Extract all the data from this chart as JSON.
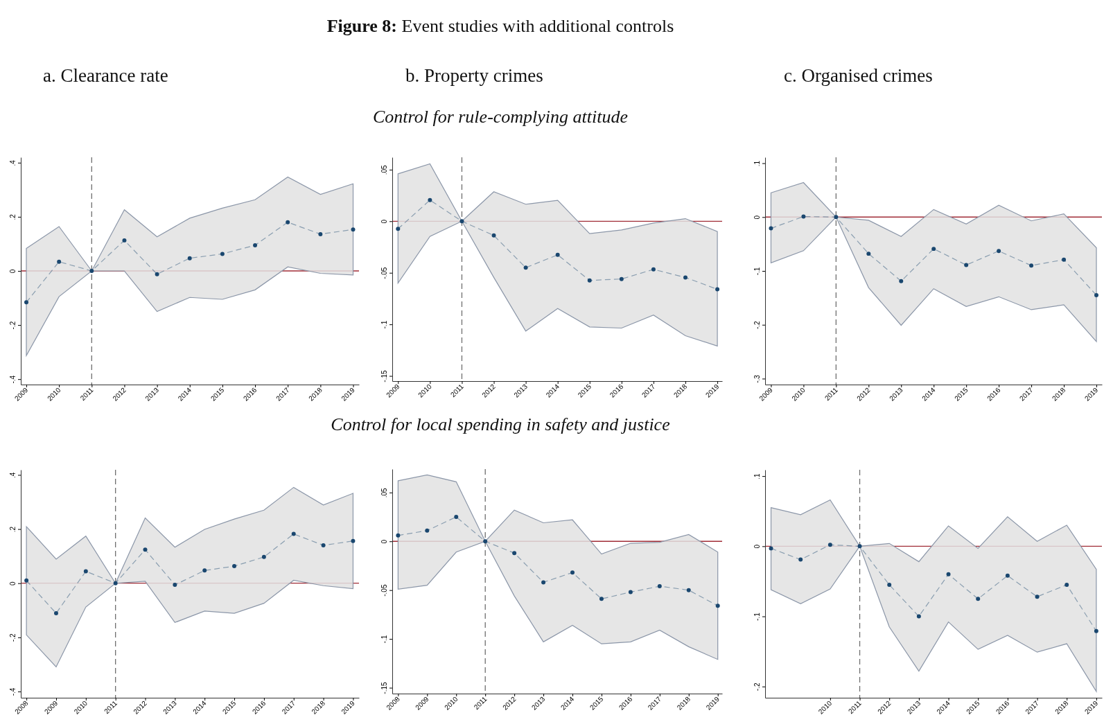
{
  "chart_data": [
    {
      "type": "line",
      "title": "a. Clearance rate",
      "annotations": [
        "Figure 8: Event studies with additional controls",
        "Control for rule-complying attitude"
      ],
      "x": [
        2009,
        2010,
        2011,
        2012,
        2013,
        2014,
        2015,
        2016,
        2017,
        2018,
        2019
      ],
      "xlim": [
        2008.83,
        2019.18
      ],
      "xticks": [
        2009,
        2010,
        2011,
        2012,
        2013,
        2014,
        2015,
        2016,
        2017,
        2018,
        2019
      ],
      "ylim": [
        -0.42,
        0.42
      ],
      "yticks": [
        {
          "value": -0.4,
          "label": "-.4"
        },
        {
          "value": -0.2,
          "label": "-.2"
        },
        {
          "value": 0,
          "label": "0"
        },
        {
          "value": 0.2,
          "label": ".2"
        },
        {
          "value": 0.4,
          "label": ".4"
        }
      ],
      "marker": "circle",
      "line_style": "dashed",
      "ref_lines": [
        {
          "axis": "y",
          "value": 0,
          "color": "#a02c36"
        },
        {
          "axis": "x",
          "value": 2011,
          "color": "#6e6e6e",
          "line_style": "dashed"
        }
      ],
      "series": [
        {
          "color": "#1a476f",
          "values": [
            -0.116,
            0.034,
            0,
            0.113,
            -0.012,
            0.047,
            0.063,
            0.095,
            0.18,
            0.136,
            0.153
          ],
          "upper": [
            0.083,
            0.164,
            0,
            0.226,
            0.126,
            0.195,
            0.232,
            0.263,
            0.347,
            0.283,
            0.322
          ],
          "lower": [
            -0.313,
            -0.095,
            0,
            0,
            -0.15,
            -0.098,
            -0.105,
            -0.07,
            0.015,
            -0.009,
            -0.015
          ]
        }
      ]
    },
    {
      "type": "line",
      "title": "b. Property crimes",
      "x": [
        2009,
        2010,
        2011,
        2012,
        2013,
        2014,
        2015,
        2016,
        2017,
        2018,
        2019
      ],
      "xlim": [
        2008.82,
        2019.15
      ],
      "xticks": [
        2009,
        2010,
        2011,
        2012,
        2013,
        2014,
        2015,
        2016,
        2017,
        2018,
        2019
      ],
      "ylim": [
        -0.155,
        0.062
      ],
      "yticks": [
        {
          "value": -0.15,
          "label": "-.15"
        },
        {
          "value": -0.1,
          "label": "-.1"
        },
        {
          "value": -0.05,
          "label": "-.05"
        },
        {
          "value": 0,
          "label": "0"
        },
        {
          "value": 0.05,
          "label": ".05"
        }
      ],
      "marker": "circle",
      "line_style": "dashed",
      "ref_lines": [
        {
          "axis": "y",
          "value": 0,
          "color": "#a02c36"
        },
        {
          "axis": "x",
          "value": 2011,
          "color": "#6e6e6e",
          "line_style": "dashed"
        }
      ],
      "series": [
        {
          "color": "#1a476f",
          "values": [
            -0.0074,
            0.0205,
            0,
            -0.0138,
            -0.045,
            -0.0326,
            -0.0574,
            -0.056,
            -0.0467,
            -0.0545,
            -0.066
          ],
          "upper": [
            0.046,
            0.0556,
            0,
            0.0286,
            0.0165,
            0.0203,
            -0.012,
            -0.0085,
            -0.0018,
            0.0025,
            -0.01
          ],
          "lower": [
            -0.06,
            -0.0147,
            0,
            -0.0545,
            -0.1065,
            -0.0846,
            -0.1025,
            -0.1036,
            -0.091,
            -0.111,
            -0.121
          ]
        }
      ]
    },
    {
      "type": "line",
      "title": "c. Organised crimes",
      "x": [
        2009,
        2010,
        2011,
        2012,
        2013,
        2014,
        2015,
        2016,
        2017,
        2018,
        2019
      ],
      "xlim": [
        2008.82,
        2019.17
      ],
      "xticks": [
        2009,
        2010,
        2011,
        2012,
        2013,
        2014,
        2015,
        2016,
        2017,
        2018,
        2019
      ],
      "ylim": [
        -0.311,
        0.111
      ],
      "yticks": [
        {
          "value": -0.3,
          "label": "-.3"
        },
        {
          "value": -0.2,
          "label": "-.2"
        },
        {
          "value": -0.1,
          "label": "-.1"
        },
        {
          "value": 0,
          "label": "0"
        },
        {
          "value": 0.1,
          "label": ".1"
        }
      ],
      "marker": "circle",
      "line_style": "dashed",
      "ref_lines": [
        {
          "axis": "y",
          "value": 0,
          "color": "#a02c36"
        },
        {
          "axis": "x",
          "value": 2011,
          "color": "#6e6e6e",
          "line_style": "dashed"
        }
      ],
      "series": [
        {
          "color": "#1a476f",
          "values": [
            -0.021,
            0.001,
            0,
            -0.068,
            -0.119,
            -0.059,
            -0.089,
            -0.063,
            -0.09,
            -0.079,
            -0.145
          ],
          "upper": [
            0.045,
            0.064,
            0,
            -0.006,
            -0.036,
            0.014,
            -0.013,
            0.022,
            -0.007,
            0.006,
            -0.057
          ],
          "lower": [
            -0.085,
            -0.0625,
            0,
            -0.131,
            -0.201,
            -0.133,
            -0.166,
            -0.148,
            -0.172,
            -0.163,
            -0.231
          ]
        }
      ]
    },
    {
      "type": "line",
      "annotations": [
        "Control for local spending in safety and justice"
      ],
      "x": [
        2008,
        2009,
        2010,
        2011,
        2012,
        2013,
        2014,
        2015,
        2016,
        2017,
        2018,
        2019
      ],
      "xlim": [
        2007.81,
        2019.2
      ],
      "xticks": [
        2008,
        2009,
        2010,
        2011,
        2012,
        2013,
        2014,
        2015,
        2016,
        2017,
        2018,
        2019
      ],
      "ylim": [
        -0.423,
        0.419
      ],
      "yticks": [
        {
          "value": -0.4,
          "label": "-.4"
        },
        {
          "value": -0.2,
          "label": "-.2"
        },
        {
          "value": 0,
          "label": "0"
        },
        {
          "value": 0.2,
          "label": ".2"
        },
        {
          "value": 0.4,
          "label": ".4"
        }
      ],
      "marker": "circle",
      "line_style": "dashed",
      "ref_lines": [
        {
          "axis": "y",
          "value": 0,
          "color": "#a02c36"
        },
        {
          "axis": "x",
          "value": 2011,
          "color": "#6e6e6e",
          "line_style": "dashed"
        }
      ],
      "series": [
        {
          "color": "#1a476f",
          "values": [
            0.01,
            -0.111,
            0.044,
            0,
            0.124,
            -0.006,
            0.047,
            0.063,
            0.097,
            0.182,
            0.14,
            0.156
          ],
          "upper": [
            0.209,
            0.089,
            0.174,
            0,
            0.241,
            0.133,
            0.199,
            0.237,
            0.27,
            0.354,
            0.289,
            0.332
          ],
          "lower": [
            -0.191,
            -0.309,
            -0.088,
            0,
            0.007,
            -0.145,
            -0.103,
            -0.111,
            -0.074,
            0.011,
            -0.009,
            -0.02
          ]
        }
      ]
    },
    {
      "type": "line",
      "x": [
        2008,
        2009,
        2010,
        2011,
        2012,
        2013,
        2014,
        2015,
        2016,
        2017,
        2018,
        2019
      ],
      "xlim": [
        2007.8,
        2019.15
      ],
      "xticks": [
        2008,
        2009,
        2010,
        2011,
        2012,
        2013,
        2014,
        2015,
        2016,
        2017,
        2018,
        2019
      ],
      "ylim": [
        -0.156,
        0.074
      ],
      "yticks": [
        {
          "value": -0.15,
          "label": "-.15"
        },
        {
          "value": -0.1,
          "label": "-.1"
        },
        {
          "value": -0.05,
          "label": "-.05"
        },
        {
          "value": 0,
          "label": "0"
        },
        {
          "value": 0.05,
          "label": ".05"
        }
      ],
      "marker": "circle",
      "line_style": "dashed",
      "ref_lines": [
        {
          "axis": "y",
          "value": 0,
          "color": "#a02c36"
        },
        {
          "axis": "x",
          "value": 2011,
          "color": "#6e6e6e",
          "line_style": "dashed"
        }
      ],
      "series": [
        {
          "color": "#1a476f",
          "values": [
            0.006,
            0.011,
            0.025,
            0,
            -0.012,
            -0.042,
            -0.032,
            -0.059,
            -0.052,
            -0.046,
            -0.05,
            -0.066
          ],
          "upper": [
            0.062,
            0.068,
            0.061,
            0,
            0.032,
            0.019,
            0.022,
            -0.013,
            -0.002,
            -0.001,
            0.007,
            -0.011
          ],
          "lower": [
            -0.049,
            -0.045,
            -0.011,
            0,
            -0.056,
            -0.103,
            -0.086,
            -0.105,
            -0.103,
            -0.091,
            -0.108,
            -0.121
          ]
        }
      ]
    },
    {
      "type": "line",
      "x": [
        2008,
        2009,
        2010,
        2011,
        2012,
        2013,
        2014,
        2015,
        2016,
        2017,
        2018,
        2019
      ],
      "xlim": [
        2007.8,
        2019.19
      ],
      "xticks": [
        2010,
        2011,
        2012,
        2013,
        2014,
        2015,
        2016,
        2017,
        2018,
        2019
      ],
      "ylim": [
        -0.216,
        0.109
      ],
      "yticks": [
        {
          "value": -0.2,
          "label": "-.2"
        },
        {
          "value": -0.1,
          "label": "-.1"
        },
        {
          "value": 0,
          "label": "0"
        },
        {
          "value": 0.1,
          "label": ".1"
        }
      ],
      "marker": "circle",
      "line_style": "dashed",
      "ref_lines": [
        {
          "axis": "y",
          "value": 0,
          "color": "#a02c36"
        },
        {
          "axis": "x",
          "value": 2011,
          "color": "#6e6e6e",
          "line_style": "dashed"
        }
      ],
      "series": [
        {
          "color": "#1a476f",
          "values": [
            -0.003,
            -0.019,
            0.002,
            0,
            -0.055,
            -0.1,
            -0.04,
            -0.075,
            -0.042,
            -0.072,
            -0.055,
            -0.121
          ],
          "upper": [
            0.055,
            0.045,
            0.066,
            0,
            0.004,
            -0.022,
            0.029,
            -0.003,
            0.042,
            0.007,
            0.03,
            -0.033
          ],
          "lower": [
            -0.062,
            -0.082,
            -0.061,
            0,
            -0.115,
            -0.178,
            -0.108,
            -0.147,
            -0.127,
            -0.151,
            -0.139,
            -0.207
          ]
        }
      ]
    }
  ]
}
